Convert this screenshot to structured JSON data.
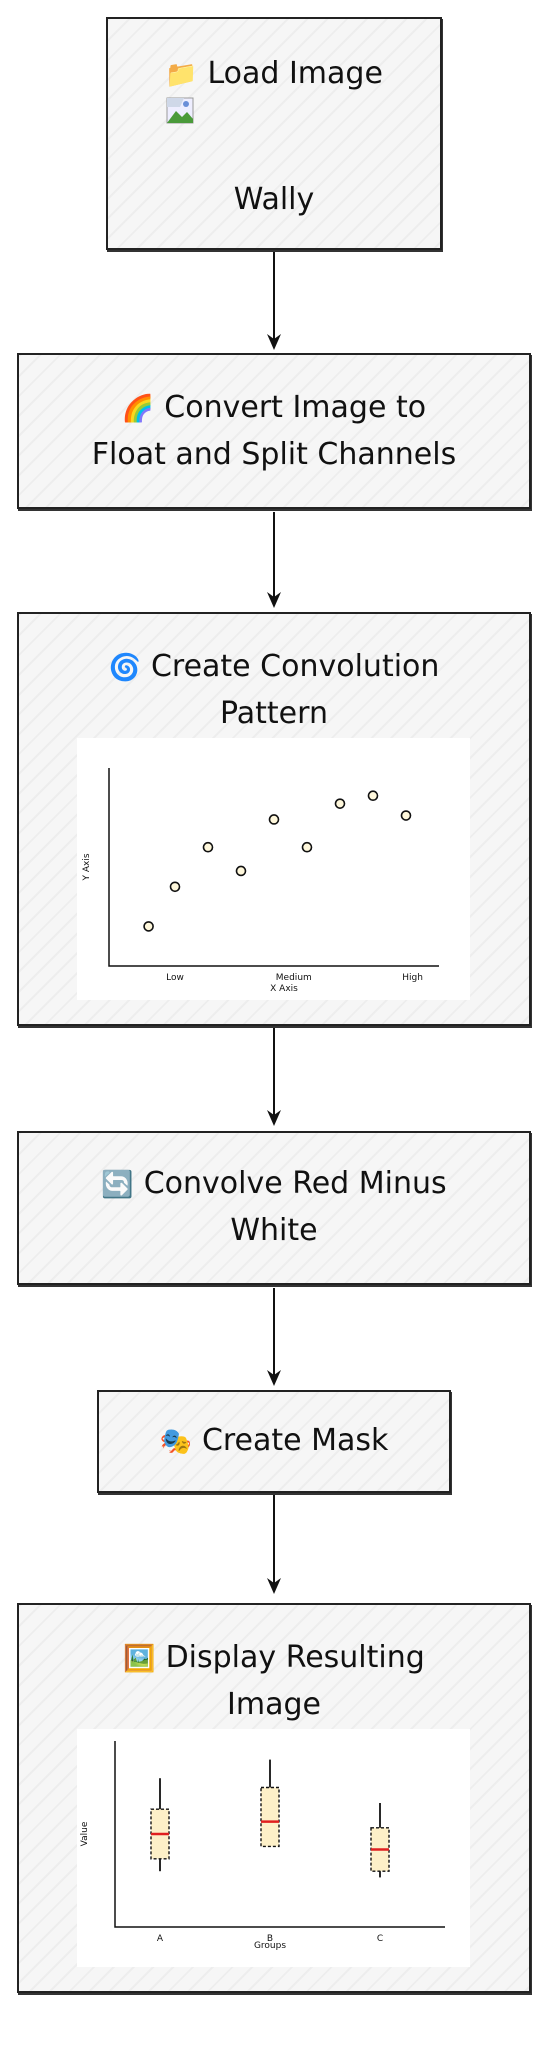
{
  "nodes": {
    "load_image": {
      "icon": "📁",
      "title": "Load Image",
      "subtitle": "Wally"
    },
    "convert": {
      "icon": "🌈",
      "line1": "Convert Image to",
      "line2": "Float and Split Channels"
    },
    "convolution_pattern": {
      "icon": "🌀",
      "line1": "Create Convolution",
      "line2": "Pattern"
    },
    "convolve": {
      "icon": "🔄",
      "line1": "Convolve Red Minus",
      "line2": "White"
    },
    "mask": {
      "icon": "🎭",
      "title": "Create Mask"
    },
    "display": {
      "icon": "🖼️",
      "line1": "Display Resulting",
      "line2": "Image"
    }
  },
  "chart_data": [
    {
      "type": "scatter",
      "xlabel": "X Axis",
      "ylabel": "Y Axis",
      "x_ticks": [
        "Low",
        "Medium",
        "High"
      ],
      "points": [
        {
          "x": 0.3,
          "y": 1.0
        },
        {
          "x": 0.5,
          "y": 2.0
        },
        {
          "x": 0.75,
          "y": 3.0
        },
        {
          "x": 1.0,
          "y": 2.4
        },
        {
          "x": 1.25,
          "y": 3.7
        },
        {
          "x": 1.5,
          "y": 3.0
        },
        {
          "x": 1.75,
          "y": 4.1
        },
        {
          "x": 2.0,
          "y": 4.3
        },
        {
          "x": 2.25,
          "y": 3.8
        }
      ],
      "xlim": [
        0,
        2.5
      ],
      "ylim": [
        0,
        5
      ]
    },
    {
      "type": "box",
      "xlabel": "Groups",
      "ylabel": "Value",
      "categories": [
        "A",
        "B",
        "C"
      ],
      "boxes": [
        {
          "min": 1.8,
          "q1": 2.2,
          "median": 3.0,
          "q3": 3.8,
          "max": 4.8
        },
        {
          "min": 2.6,
          "q1": 2.6,
          "median": 3.4,
          "q3": 4.5,
          "max": 5.4
        },
        {
          "min": 1.6,
          "q1": 1.8,
          "median": 2.5,
          "q3": 3.2,
          "max": 4.0
        }
      ],
      "ylim": [
        0,
        6
      ]
    }
  ]
}
